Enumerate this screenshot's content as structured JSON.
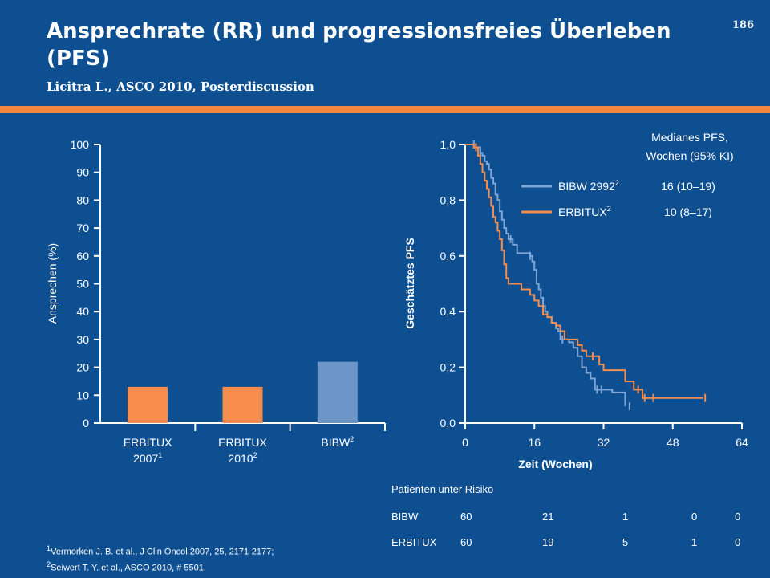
{
  "page": {
    "title": "Ansprechrate (RR) und progressionsfreies Überleben (PFS)",
    "subtitle": "Licitra L., ASCO 2010, Posterdiscussion",
    "page_number": "186"
  },
  "colors": {
    "background": "#0d4f91",
    "accent": "#f4873f",
    "erbitux": "#f68d4d",
    "bibw_bar": "#6b96c7",
    "bibw_line": "#7fa6d6",
    "axis": "#ffffff"
  },
  "chart_data": [
    {
      "type": "bar",
      "ylabel": "Ansprechen (%)",
      "ylim": [
        0,
        100
      ],
      "yticks": [
        "0",
        "10",
        "20",
        "30",
        "40",
        "50",
        "60",
        "70",
        "80",
        "90",
        "100"
      ],
      "categories": [
        {
          "line1": "ERBITUX",
          "line2": "2007",
          "sup": "1"
        },
        {
          "line1": "ERBITUX",
          "line2": "2010",
          "sup": "2"
        },
        {
          "line1": "BIBW",
          "line2": "",
          "sup": "2"
        }
      ],
      "values": [
        13,
        13,
        22
      ],
      "bar_colors": [
        "#f68d4d",
        "#f68d4d",
        "#6b96c7"
      ]
    },
    {
      "type": "line",
      "ylabel": "Geschätztes PFS",
      "xlabel": "Zeit (Wochen)",
      "xlim": [
        0,
        64
      ],
      "ylim": [
        0,
        1
      ],
      "xticks": [
        "0",
        "16",
        "32",
        "48",
        "64"
      ],
      "yticks": [
        "0,0",
        "0,2",
        "0,4",
        "0,6",
        "0,8",
        "1,0"
      ],
      "legend_title_line1": "Medianes PFS,",
      "legend_title_line2": "Wochen (95% KI)",
      "legend_position": "top-right",
      "series": [
        {
          "name": "BIBW 2992",
          "sup": "2",
          "median": "16 (10–19)",
          "color": "#7fa6d6",
          "x": [
            0,
            1.5,
            2.5,
            3.5,
            4,
            4.5,
            5,
            5.5,
            6,
            6.5,
            7,
            7.5,
            8,
            8.5,
            9,
            9.5,
            10,
            11,
            12,
            13,
            14,
            15,
            15.5,
            16,
            16.5,
            17,
            17.5,
            18,
            18.5,
            19,
            20,
            21,
            21.5,
            22,
            23,
            24,
            25,
            26,
            27,
            28,
            29,
            30,
            31,
            32,
            33,
            34,
            35,
            36,
            37
          ],
          "y": [
            1.0,
            1.0,
            0.99,
            0.97,
            0.96,
            0.94,
            0.93,
            0.91,
            0.88,
            0.86,
            0.82,
            0.8,
            0.76,
            0.73,
            0.7,
            0.68,
            0.66,
            0.64,
            0.61,
            0.61,
            0.61,
            0.6,
            0.58,
            0.55,
            0.5,
            0.48,
            0.45,
            0.42,
            0.4,
            0.38,
            0.36,
            0.34,
            0.33,
            0.3,
            0.3,
            0.29,
            0.27,
            0.24,
            0.2,
            0.18,
            0.16,
            0.12,
            0.12,
            0.12,
            0.12,
            0.11,
            0.11,
            0.11,
            0.06
          ],
          "censored": [
            {
              "x": 2,
              "y": 1.0
            },
            {
              "x": 3.5,
              "y": 0.97
            },
            {
              "x": 10.5,
              "y": 0.66
            },
            {
              "x": 15,
              "y": 0.6
            },
            {
              "x": 22.5,
              "y": 0.3
            },
            {
              "x": 30.5,
              "y": 0.12
            },
            {
              "x": 31.5,
              "y": 0.12
            },
            {
              "x": 38,
              "y": 0.06
            }
          ]
        },
        {
          "name": "ERBITUX",
          "sup": "2",
          "median": "10 (8–17)",
          "color": "#f68d4d",
          "x": [
            0,
            2,
            3,
            3.5,
            4,
            4.5,
            5,
            5.5,
            6,
            6.5,
            7,
            7.5,
            8,
            8.5,
            9,
            9.5,
            10,
            12,
            13,
            14,
            15,
            16,
            17,
            18,
            19,
            20,
            21,
            22,
            23,
            24,
            25,
            26,
            27,
            28,
            29,
            31,
            32,
            33,
            36,
            37,
            39,
            41,
            50,
            54,
            55
          ],
          "y": [
            1.0,
            0.99,
            0.96,
            0.93,
            0.9,
            0.87,
            0.84,
            0.81,
            0.78,
            0.74,
            0.72,
            0.69,
            0.66,
            0.62,
            0.57,
            0.52,
            0.5,
            0.5,
            0.48,
            0.48,
            0.46,
            0.44,
            0.42,
            0.39,
            0.38,
            0.36,
            0.35,
            0.33,
            0.3,
            0.3,
            0.3,
            0.28,
            0.26,
            0.24,
            0.24,
            0.21,
            0.19,
            0.19,
            0.19,
            0.15,
            0.12,
            0.09,
            0.09,
            0.09,
            0.09
          ],
          "censored": [
            {
              "x": 2.5,
              "y": 0.99
            },
            {
              "x": 29.5,
              "y": 0.24
            },
            {
              "x": 40,
              "y": 0.12
            },
            {
              "x": 41.5,
              "y": 0.09
            },
            {
              "x": 43.5,
              "y": 0.09
            },
            {
              "x": 55.5,
              "y": 0.09
            }
          ]
        }
      ]
    }
  ],
  "risk_table": {
    "title": "Patienten unter Risiko",
    "rows": [
      {
        "label": "BIBW",
        "values": [
          "60",
          "21",
          "1",
          "0",
          "0"
        ]
      },
      {
        "label": "ERBITUX",
        "values": [
          "60",
          "19",
          "5",
          "1",
          "0"
        ]
      }
    ]
  },
  "footnotes": [
    {
      "sup": "1",
      "text": "Vermorken J. B. et al., J Clin Oncol 2007, 25, 2171-2177;"
    },
    {
      "sup": "2",
      "text": "Seiwert T. Y. et al., ASCO 2010, # 5501."
    }
  ]
}
